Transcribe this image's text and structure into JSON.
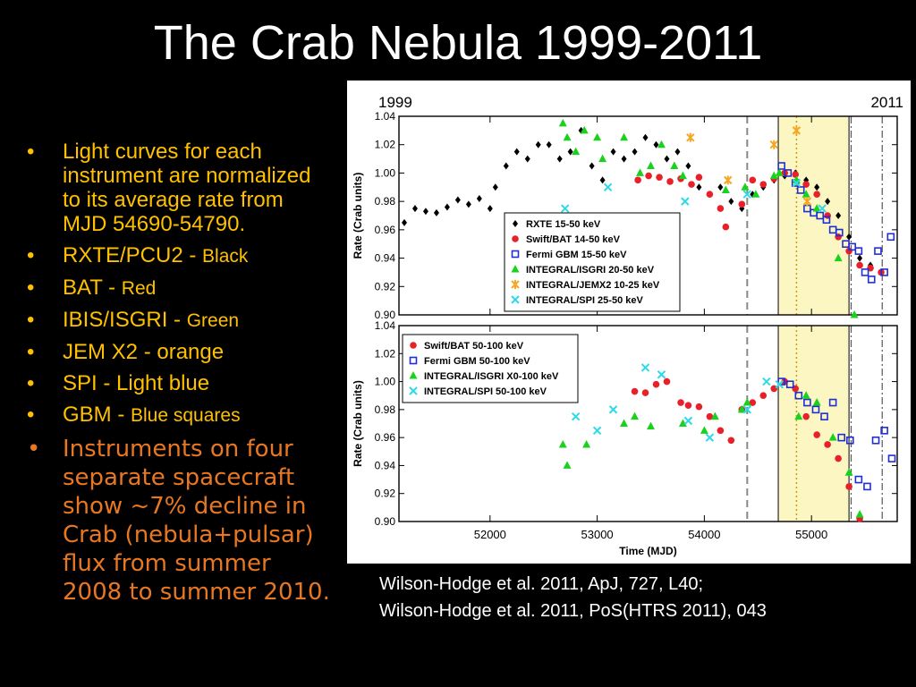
{
  "slide": {
    "title": "The Crab Nebula 1999-2011",
    "bullets": [
      {
        "main": "Light curves for each instrument are normalized to its average rate from MJD 54690-54790.",
        "suffix": ""
      },
      {
        "main": "RXTE/PCU2 - ",
        "suffix": "Black"
      },
      {
        "main": "BAT - ",
        "suffix": "Red"
      },
      {
        "main": "IBIS/ISGRI - ",
        "suffix": "Green"
      },
      {
        "main": "JEM X2 - orange",
        "suffix": ""
      },
      {
        "main": "SPI - Light blue",
        "suffix": ""
      },
      {
        "main": "GBM - ",
        "suffix": "Blue squares"
      },
      {
        "main": "Instruments on four separate spacecraft show ~7% decline in Crab (nebula+pulsar) flux from summer 2008 to summer 2010.",
        "suffix": ""
      }
    ],
    "references": [
      "Wilson-Hodge et al. 2011, ApJ, 727, L40;",
      "Wilson-Hodge et al. 2011, PoS(HTRS 2011), 043"
    ]
  },
  "colors": {
    "bullet_text": "#FFC000",
    "bullet_text_big": "#E87722",
    "rxte": "#000000",
    "bat": "#E8202A",
    "gbm": "#1F2FD6",
    "isgri": "#18D21C",
    "jemx": "#F5A623",
    "spi": "#2ED9E8",
    "highlight": "#FBF6C2"
  },
  "chart_data": {
    "type": "scatter",
    "xlabel": "Time (MJD)",
    "xlim": [
      51150,
      55800
    ],
    "xticks": [
      52000,
      53000,
      54000,
      55000
    ],
    "top_labels": {
      "left": "1999",
      "right": "2011"
    },
    "highlight_band": [
      54690,
      55350
    ],
    "dashed_lines": [
      54400,
      54860
    ],
    "dashdot_lines": [
      55370,
      55660
    ],
    "panels": [
      {
        "ylabel": "Rate (Crab units)",
        "ylim": [
          0.9,
          1.04
        ],
        "yticks": [
          "0.90",
          "0.92",
          "0.94",
          "0.96",
          "0.98",
          "1.00",
          "1.02",
          "1.04"
        ],
        "legend": [
          "RXTE 15-50 keV",
          "Swift/BAT 14-50 keV",
          "Fermi GBM 15-50 keV",
          "INTEGRAL/ISGRI 20-50 keV",
          "INTEGRAL/JEMX2 10-25 keV",
          "INTEGRAL/SPI 25-50 keV"
        ],
        "series": [
          {
            "name": "RXTE 15-50 keV",
            "marker": "diamond",
            "color": "#000000",
            "x": [
              51200,
              51300,
              51400,
              51500,
              51600,
              51700,
              51800,
              51900,
              52000,
              52050,
              52150,
              52250,
              52350,
              52450,
              52550,
              52650,
              52750,
              52850,
              52950,
              53050,
              53150,
              53250,
              53350,
              53450,
              53550,
              53650,
              53750,
              53850,
              53950,
              54050,
              54150,
              54250,
              54350,
              54450,
              54550,
              54650,
              54750,
              54850,
              54950,
              55050,
              55150,
              55250,
              55350,
              55450,
              55550,
              55650
            ],
            "y": [
              0.965,
              0.975,
              0.973,
              0.972,
              0.976,
              0.981,
              0.978,
              0.982,
              0.975,
              0.99,
              1.005,
              1.015,
              1.01,
              1.02,
              1.02,
              1.01,
              1.015,
              1.03,
              1.005,
              0.995,
              1.015,
              1.01,
              1.015,
              1.025,
              1.02,
              1.01,
              1.015,
              1.005,
              0.99,
              0.985,
              0.99,
              0.98,
              0.975,
              0.985,
              0.99,
              0.995,
              0.998,
              1.0,
              0.995,
              0.99,
              0.98,
              0.97,
              0.955,
              0.94,
              0.935,
              0.93
            ]
          },
          {
            "name": "Swift/BAT 14-50 keV",
            "marker": "circle",
            "color": "#E8202A",
            "x": [
              53380,
              53480,
              53580,
              53680,
              53780,
              53880,
              53950,
              54050,
              54150,
              54200,
              54350,
              54450,
              54550,
              54650,
              54750,
              54850,
              54950,
              55050,
              55150,
              55250,
              55350,
              55450,
              55550,
              55650
            ],
            "y": [
              0.995,
              0.998,
              0.997,
              0.994,
              0.996,
              0.992,
              0.997,
              0.985,
              0.975,
              0.962,
              0.978,
              0.995,
              0.992,
              0.996,
              1.0,
              0.999,
              0.992,
              0.985,
              0.97,
              0.955,
              0.945,
              0.935,
              0.933,
              0.93
            ]
          },
          {
            "name": "Fermi GBM 15-50 keV",
            "marker": "square",
            "color": "#1F2FD6",
            "x": [
              54720,
              54780,
              54850,
              54900,
              54960,
              55020,
              55080,
              55140,
              55200,
              55260,
              55320,
              55380,
              55440,
              55500,
              55560,
              55620,
              55680,
              55740
            ],
            "y": [
              1.005,
              1.0,
              0.993,
              0.988,
              0.975,
              0.972,
              0.97,
              0.967,
              0.96,
              0.958,
              0.95,
              0.948,
              0.945,
              0.93,
              0.925,
              0.945,
              0.93,
              0.955
            ]
          },
          {
            "name": "INTEGRAL/ISGRI 20-50 keV",
            "marker": "triangle",
            "color": "#18D21C",
            "x": [
              52680,
              52720,
              52800,
              52880,
              53000,
              53050,
              53250,
              53400,
              53500,
              53600,
              53720,
              53800,
              54200,
              54380,
              54480,
              54650,
              54700,
              54860,
              54950,
              55050,
              55250,
              55400
            ],
            "y": [
              1.035,
              1.025,
              1.015,
              1.03,
              1.025,
              1.01,
              1.025,
              1.0,
              1.005,
              1.02,
              1.005,
              0.998,
              0.988,
              0.99,
              0.985,
              0.998,
              1.0,
              0.995,
              0.985,
              0.975,
              0.94,
              0.9
            ]
          },
          {
            "name": "INTEGRAL/JEMX2 10-25 keV",
            "marker": "star",
            "color": "#F5A623",
            "x": [
              53870,
              54220,
              54650,
              54860,
              54960
            ],
            "y": [
              1.025,
              0.995,
              1.02,
              1.03,
              0.98
            ]
          },
          {
            "name": "INTEGRAL/SPI 25-50 keV",
            "marker": "x",
            "color": "#2ED9E8",
            "x": [
              52700,
              53100,
              53820,
              54400,
              54860,
              55100
            ],
            "y": [
              0.975,
              0.99,
              0.98,
              0.985,
              0.993,
              0.975
            ]
          }
        ]
      },
      {
        "ylabel": "Rate (Crab units)",
        "ylim": [
          0.9,
          1.04
        ],
        "yticks": [
          "0.90",
          "0.92",
          "0.94",
          "0.96",
          "0.98",
          "1.00",
          "1.02",
          "1.04"
        ],
        "legend": [
          "Swift/BAT 50-100 keV",
          "Fermi GBM 50-100 keV",
          "INTEGRAL/ISGRI X0-100 keV",
          "INTEGRAL/SPI 50-100 keV"
        ],
        "series": [
          {
            "name": "Swift/BAT 50-100 keV",
            "marker": "circle",
            "color": "#E8202A",
            "x": [
              53350,
              53450,
              53550,
              53650,
              53780,
              53850,
              53950,
              54050,
              54150,
              54250,
              54350,
              54450,
              54550,
              54650,
              54750,
              54850,
              54950,
              55050,
              55150,
              55250,
              55350,
              55450
            ],
            "y": [
              0.993,
              0.992,
              0.998,
              1.0,
              0.985,
              0.983,
              0.982,
              0.975,
              0.965,
              0.958,
              0.98,
              0.985,
              0.99,
              0.995,
              1.0,
              0.995,
              0.975,
              0.962,
              0.955,
              0.945,
              0.925,
              0.902
            ]
          },
          {
            "name": "Fermi GBM 50-100 keV",
            "marker": "square",
            "color": "#1F2FD6",
            "x": [
              54720,
              54800,
              54880,
              54960,
              55040,
              55120,
              55200,
              55280,
              55360,
              55440,
              55520,
              55600,
              55680,
              55750
            ],
            "y": [
              1.0,
              0.998,
              0.99,
              0.985,
              0.98,
              0.975,
              0.985,
              0.96,
              0.958,
              0.93,
              0.925,
              0.958,
              0.965,
              0.945
            ]
          },
          {
            "name": "INTEGRAL/ISGRI X0-100 keV",
            "marker": "triangle",
            "color": "#18D21C",
            "x": [
              52680,
              52720,
              52900,
              53250,
              53350,
              53500,
              53800,
              54000,
              54100,
              54350,
              54400,
              54880,
              54950,
              55050,
              55200,
              55350,
              55450
            ],
            "y": [
              0.955,
              0.94,
              0.955,
              0.97,
              0.975,
              0.968,
              0.97,
              0.965,
              0.975,
              0.98,
              0.985,
              0.975,
              0.99,
              0.985,
              0.96,
              0.935,
              0.905
            ]
          },
          {
            "name": "INTEGRAL/SPI 50-100 keV",
            "marker": "x",
            "color": "#2ED9E8",
            "x": [
              52700,
              52800,
              53000,
              53150,
              53450,
              53600,
              53850,
              54050,
              54400,
              54580,
              54700
            ],
            "y": [
              0.995,
              0.975,
              0.965,
              0.98,
              1.01,
              1.005,
              0.972,
              0.96,
              0.98,
              1.0,
              0.998
            ]
          }
        ]
      }
    ]
  }
}
